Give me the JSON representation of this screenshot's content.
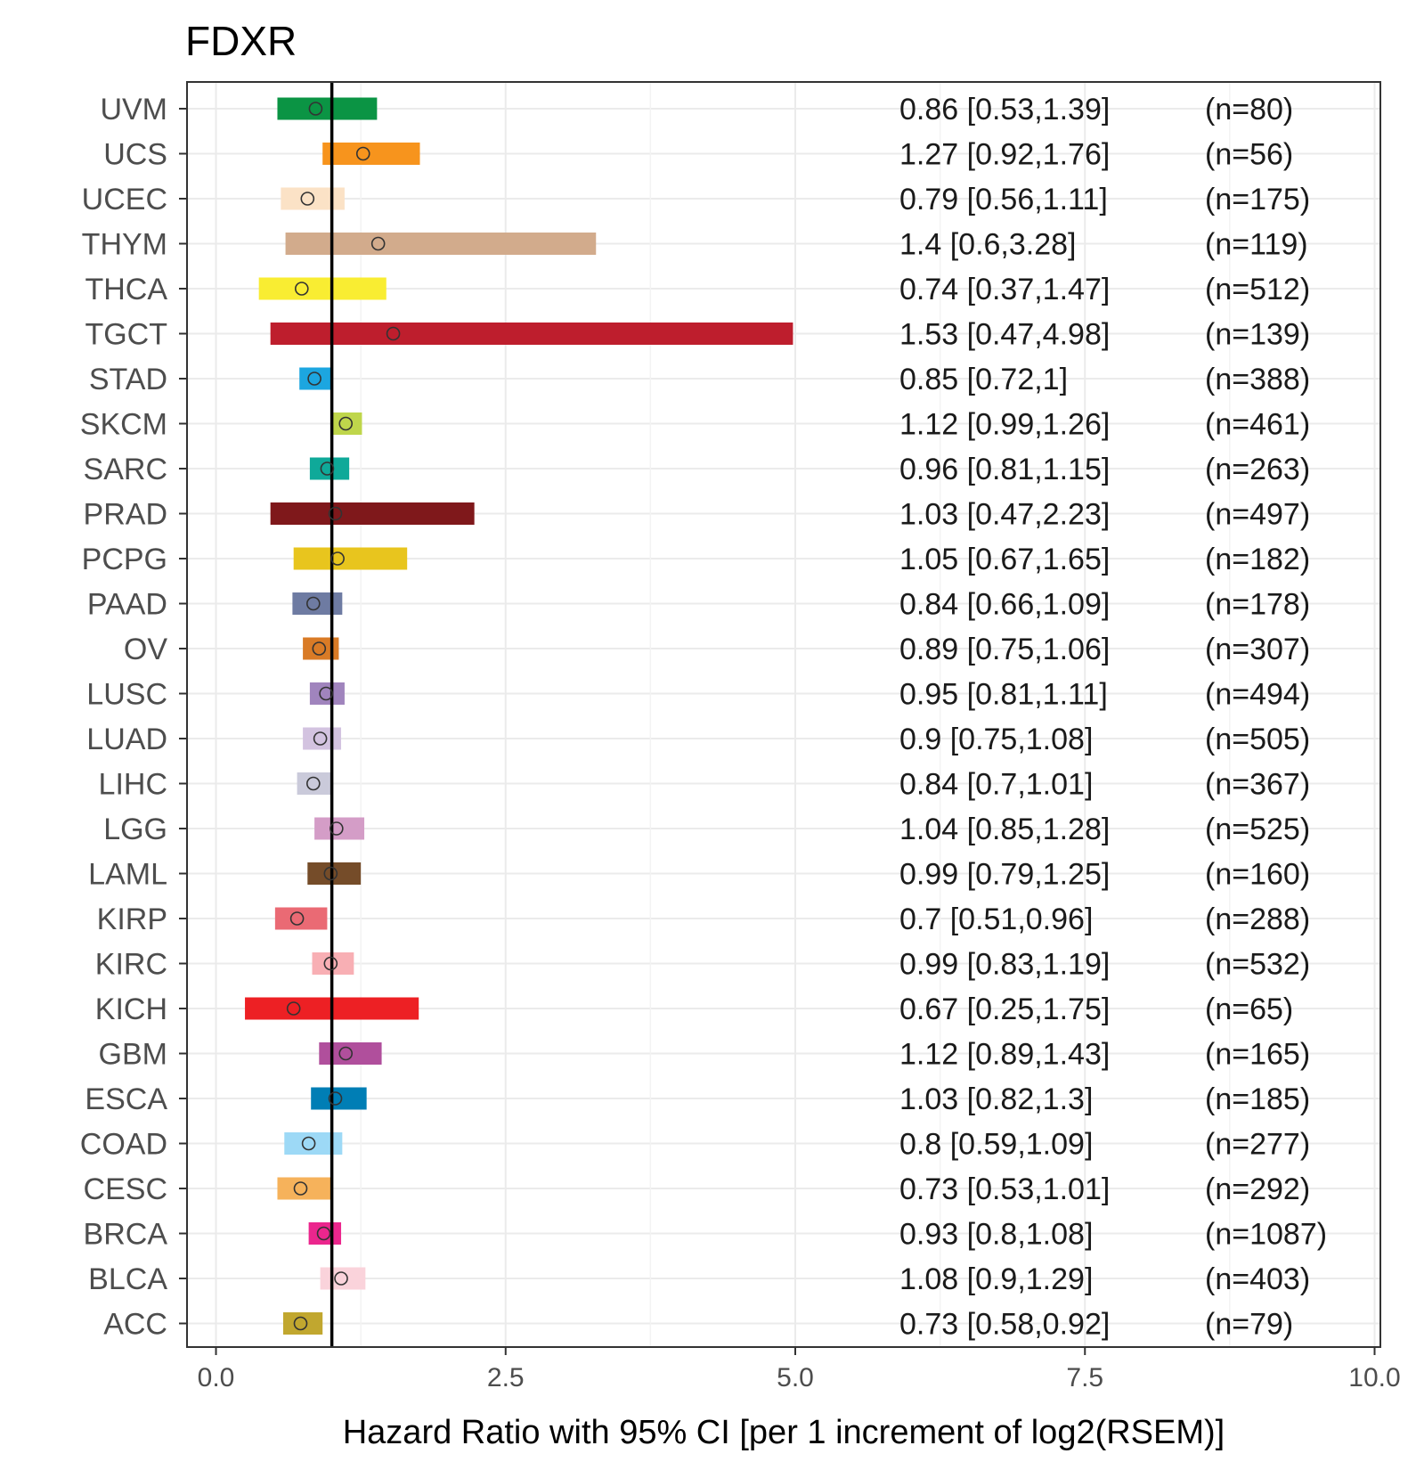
{
  "chart_data": {
    "type": "forest",
    "title": "FDXR",
    "xlabel": "Hazard Ratio with 95% CI [per 1 increment of log2(RSEM)]",
    "ylabel": "",
    "xlim": [
      -0.25,
      10.05
    ],
    "xticks": [
      0,
      2.5,
      5,
      7.5,
      10
    ],
    "xtick_labels": [
      "0.0",
      "2.5",
      "5.0",
      "7.5",
      "10.0"
    ],
    "reference_line": 1,
    "grid": true,
    "rows": [
      {
        "cancer": "UVM",
        "hr": 0.86,
        "lo": 0.53,
        "hi": 1.39,
        "label": "0.86 [0.53,1.39]",
        "n": "(n=80)",
        "color": "#0B9444"
      },
      {
        "cancer": "UCS",
        "hr": 1.27,
        "lo": 0.92,
        "hi": 1.76,
        "label": "1.27 [0.92,1.76]",
        "n": "(n=56)",
        "color": "#F7941D"
      },
      {
        "cancer": "UCEC",
        "hr": 0.79,
        "lo": 0.56,
        "hi": 1.11,
        "label": "0.79 [0.56,1.11]",
        "n": "(n=175)",
        "color": "#FBE2C6"
      },
      {
        "cancer": "THYM",
        "hr": 1.4,
        "lo": 0.6,
        "hi": 3.28,
        "label": "1.4 [0.6,3.28]",
        "n": "(n=119)",
        "color": "#D2AB8C"
      },
      {
        "cancer": "THCA",
        "hr": 0.74,
        "lo": 0.37,
        "hi": 1.47,
        "label": "0.74 [0.37,1.47]",
        "n": "(n=512)",
        "color": "#F9ED32"
      },
      {
        "cancer": "TGCT",
        "hr": 1.53,
        "lo": 0.47,
        "hi": 4.98,
        "label": "1.53 [0.47,4.98]",
        "n": "(n=139)",
        "color": "#BE1E2D"
      },
      {
        "cancer": "STAD",
        "hr": 0.85,
        "lo": 0.72,
        "hi": 1,
        "label": "0.85 [0.72,1]",
        "n": "(n=388)",
        "color": "#1CA6E0"
      },
      {
        "cancer": "SKCM",
        "hr": 1.12,
        "lo": 0.99,
        "hi": 1.26,
        "label": "1.12 [0.99,1.26]",
        "n": "(n=461)",
        "color": "#BFD64B"
      },
      {
        "cancer": "SARC",
        "hr": 0.96,
        "lo": 0.81,
        "hi": 1.15,
        "label": "0.96 [0.81,1.15]",
        "n": "(n=263)",
        "color": "#0FA999"
      },
      {
        "cancer": "PRAD",
        "hr": 1.03,
        "lo": 0.47,
        "hi": 2.23,
        "label": "1.03 [0.47,2.23]",
        "n": "(n=497)",
        "color": "#7F181B"
      },
      {
        "cancer": "PCPG",
        "hr": 1.05,
        "lo": 0.67,
        "hi": 1.65,
        "label": "1.05 [0.67,1.65]",
        "n": "(n=182)",
        "color": "#E8C51E"
      },
      {
        "cancer": "PAAD",
        "hr": 0.84,
        "lo": 0.66,
        "hi": 1.09,
        "label": "0.84 [0.66,1.09]",
        "n": "(n=178)",
        "color": "#6E7BA2"
      },
      {
        "cancer": "OV",
        "hr": 0.89,
        "lo": 0.75,
        "hi": 1.06,
        "label": "0.89 [0.75,1.06]",
        "n": "(n=307)",
        "color": "#D97B26"
      },
      {
        "cancer": "LUSC",
        "hr": 0.95,
        "lo": 0.81,
        "hi": 1.11,
        "label": "0.95 [0.81,1.11]",
        "n": "(n=494)",
        "color": "#A084BD"
      },
      {
        "cancer": "LUAD",
        "hr": 0.9,
        "lo": 0.75,
        "hi": 1.08,
        "label": "0.9 [0.75,1.08]",
        "n": "(n=505)",
        "color": "#D3C3E0"
      },
      {
        "cancer": "LIHC",
        "hr": 0.84,
        "lo": 0.7,
        "hi": 1.01,
        "label": "0.84 [0.7,1.01]",
        "n": "(n=367)",
        "color": "#CACADA"
      },
      {
        "cancer": "LGG",
        "hr": 1.04,
        "lo": 0.85,
        "hi": 1.28,
        "label": "1.04 [0.85,1.28]",
        "n": "(n=525)",
        "color": "#D49DC7"
      },
      {
        "cancer": "LAML",
        "hr": 0.99,
        "lo": 0.79,
        "hi": 1.25,
        "label": "0.99 [0.79,1.25]",
        "n": "(n=160)",
        "color": "#754C29"
      },
      {
        "cancer": "KIRP",
        "hr": 0.7,
        "lo": 0.51,
        "hi": 0.96,
        "label": "0.7 [0.51,0.96]",
        "n": "(n=288)",
        "color": "#EA6A74"
      },
      {
        "cancer": "KIRC",
        "hr": 0.99,
        "lo": 0.83,
        "hi": 1.19,
        "label": "0.99 [0.83,1.19]",
        "n": "(n=532)",
        "color": "#F8AFB4"
      },
      {
        "cancer": "KICH",
        "hr": 0.67,
        "lo": 0.25,
        "hi": 1.75,
        "label": "0.67 [0.25,1.75]",
        "n": "(n=65)",
        "color": "#ED2024"
      },
      {
        "cancer": "GBM",
        "hr": 1.12,
        "lo": 0.89,
        "hi": 1.43,
        "label": "1.12 [0.89,1.43]",
        "n": "(n=165)",
        "color": "#B04F9C"
      },
      {
        "cancer": "ESCA",
        "hr": 1.03,
        "lo": 0.82,
        "hi": 1.3,
        "label": "1.03 [0.82,1.3]",
        "n": "(n=185)",
        "color": "#007EB5"
      },
      {
        "cancer": "COAD",
        "hr": 0.8,
        "lo": 0.59,
        "hi": 1.09,
        "label": "0.8 [0.59,1.09]",
        "n": "(n=277)",
        "color": "#9DD9F6"
      },
      {
        "cancer": "CESC",
        "hr": 0.73,
        "lo": 0.53,
        "hi": 1.01,
        "label": "0.73 [0.53,1.01]",
        "n": "(n=292)",
        "color": "#F6B25B"
      },
      {
        "cancer": "BRCA",
        "hr": 0.93,
        "lo": 0.8,
        "hi": 1.08,
        "label": "0.93 [0.8,1.08]",
        "n": "(n=1087)",
        "color": "#EB268D"
      },
      {
        "cancer": "BLCA",
        "hr": 1.08,
        "lo": 0.9,
        "hi": 1.29,
        "label": "1.08 [0.9,1.29]",
        "n": "(n=403)",
        "color": "#FAD3DB"
      },
      {
        "cancer": "ACC",
        "hr": 0.73,
        "lo": 0.58,
        "hi": 0.92,
        "label": "0.73 [0.58,0.92]",
        "n": "(n=79)",
        "color": "#C1A72F"
      }
    ]
  }
}
